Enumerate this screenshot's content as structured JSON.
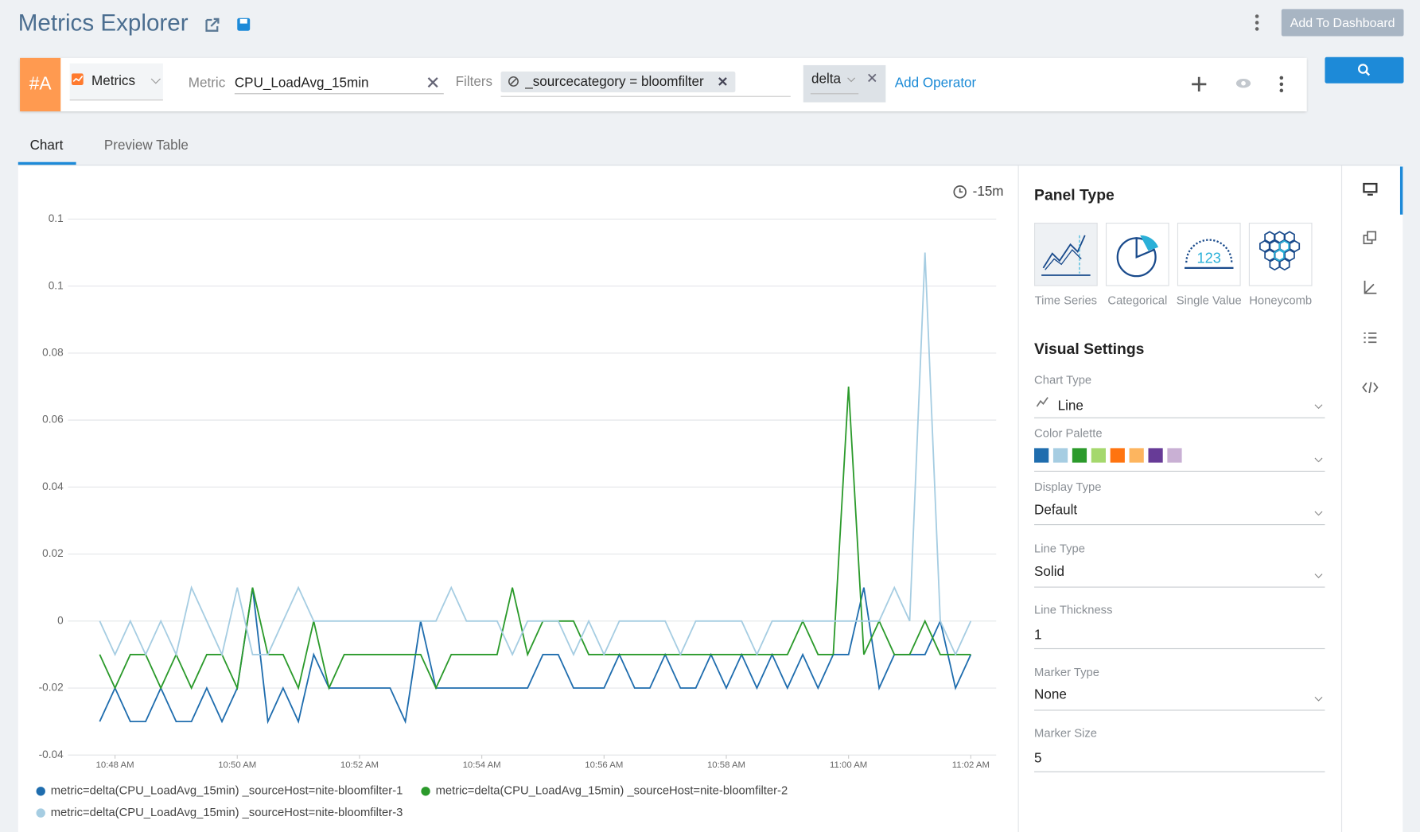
{
  "header": {
    "title": "Metrics Explorer",
    "button": "Add To Dashboard"
  },
  "query": {
    "label": "#A",
    "source": "Metrics",
    "metric_label": "Metric",
    "metric": "CPU_LoadAvg_15min",
    "filters_label": "Filters",
    "filter": "_sourcecategory = bloomfilter",
    "operator": "delta",
    "add_operator": "Add Operator"
  },
  "tabs": [
    "Chart",
    "Preview Table"
  ],
  "time_range": "-15m",
  "chart_data": {
    "type": "line",
    "x": [
      "10:47:45",
      "10:48:00",
      "10:48:15",
      "10:48:30",
      "10:48:45",
      "10:49:00",
      "10:49:15",
      "10:49:30",
      "10:49:45",
      "10:50:00",
      "10:50:15",
      "10:50:30",
      "10:50:45",
      "10:51:00",
      "10:51:15",
      "10:51:30",
      "10:51:45",
      "10:52:00",
      "10:52:15",
      "10:52:30",
      "10:52:45",
      "10:53:00",
      "10:53:15",
      "10:53:30",
      "10:53:45",
      "10:54:00",
      "10:54:15",
      "10:54:30",
      "10:54:45",
      "10:55:00",
      "10:55:15",
      "10:55:30",
      "10:55:45",
      "10:56:00",
      "10:56:15",
      "10:56:30",
      "10:56:45",
      "10:57:00",
      "10:57:15",
      "10:57:30",
      "10:57:45",
      "10:58:00",
      "10:58:15",
      "10:58:30",
      "10:58:45",
      "10:59:00",
      "10:59:15",
      "10:59:30",
      "10:59:45",
      "11:00:00",
      "11:00:15",
      "11:00:30",
      "11:00:45",
      "11:01:00",
      "11:01:15",
      "11:01:30",
      "11:01:45",
      "11:02:00"
    ],
    "series": [
      {
        "name": "metric=delta(CPU_LoadAvg_15min) _sourceHost=nite-bloomfilter-1",
        "color": "#1f6dae",
        "values": [
          -0.03,
          -0.02,
          -0.03,
          -0.03,
          -0.02,
          -0.03,
          -0.03,
          -0.02,
          -0.03,
          -0.02,
          0.01,
          -0.03,
          -0.02,
          -0.03,
          -0.01,
          -0.02,
          -0.02,
          -0.02,
          -0.02,
          -0.02,
          -0.03,
          0,
          -0.02,
          -0.02,
          -0.02,
          -0.02,
          -0.02,
          -0.02,
          -0.02,
          -0.01,
          -0.01,
          -0.02,
          -0.02,
          -0.02,
          -0.01,
          -0.02,
          -0.02,
          -0.01,
          -0.02,
          -0.02,
          -0.01,
          -0.02,
          -0.01,
          -0.02,
          -0.01,
          -0.02,
          -0.01,
          -0.02,
          -0.01,
          -0.01,
          0.01,
          -0.02,
          -0.01,
          -0.01,
          -0.01,
          0,
          -0.02,
          -0.01
        ]
      },
      {
        "name": "metric=delta(CPU_LoadAvg_15min) _sourceHost=nite-bloomfilter-2",
        "color": "#2b9a2b",
        "values": [
          -0.01,
          -0.02,
          -0.01,
          -0.01,
          -0.02,
          -0.01,
          -0.02,
          -0.01,
          -0.01,
          -0.02,
          0.01,
          -0.01,
          -0.01,
          -0.02,
          0,
          -0.02,
          -0.01,
          -0.01,
          -0.01,
          -0.01,
          -0.01,
          -0.01,
          -0.02,
          -0.01,
          -0.01,
          -0.01,
          -0.01,
          0.01,
          -0.01,
          0,
          0,
          0,
          -0.01,
          -0.01,
          -0.01,
          -0.01,
          -0.01,
          -0.01,
          -0.01,
          -0.01,
          -0.01,
          -0.01,
          -0.01,
          -0.01,
          -0.01,
          -0.01,
          0,
          -0.01,
          -0.01,
          0.07,
          -0.01,
          0,
          -0.01,
          -0.01,
          0,
          -0.01,
          -0.01,
          -0.01
        ]
      },
      {
        "name": "metric=delta(CPU_LoadAvg_15min) _sourceHost=nite-bloomfilter-3",
        "color": "#a6cde2",
        "values": [
          0,
          -0.01,
          0,
          -0.01,
          0,
          -0.01,
          0.01,
          0,
          -0.01,
          0.01,
          -0.01,
          -0.01,
          0,
          0.01,
          0,
          0,
          0,
          0,
          0,
          0,
          0,
          0,
          0,
          0.01,
          0,
          0,
          0,
          -0.01,
          0,
          0,
          0,
          -0.01,
          0,
          -0.01,
          0,
          0,
          0,
          0,
          -0.01,
          0,
          0,
          0,
          0,
          -0.01,
          0,
          0,
          0,
          0,
          0,
          0,
          0,
          0,
          0.01,
          0,
          0.11,
          0,
          -0.01,
          0
        ]
      }
    ],
    "ylim": [
      -0.04,
      0.12
    ],
    "yticks": [
      -0.04,
      -0.02,
      0,
      0.02,
      0.04,
      0.06,
      0.08,
      0.1,
      {
        "value": 0.12,
        "label": "0.1"
      }
    ],
    "xticks": [
      {
        "value": "10:48:00",
        "label": "10:48 AM"
      },
      {
        "value": "10:50:00",
        "label": "10:50 AM"
      },
      {
        "value": "10:52:00",
        "label": "10:52 AM"
      },
      {
        "value": "10:54:00",
        "label": "10:54 AM"
      },
      {
        "value": "10:56:00",
        "label": "10:56 AM"
      },
      {
        "value": "10:58:00",
        "label": "10:58 AM"
      },
      {
        "value": "11:00:00",
        "label": "11:00 AM"
      },
      {
        "value": "11:02:00",
        "label": "11:02 AM"
      }
    ],
    "grid": true
  },
  "panel": {
    "title": "Panel Type",
    "types": [
      "Time Series",
      "Categorical",
      "Single Value",
      "Honeycomb"
    ],
    "visual_title": "Visual Settings",
    "settings": [
      {
        "label": "Chart Type",
        "value": "Line"
      },
      {
        "label": "Color Palette",
        "colors": [
          "#1f6dae",
          "#a6cde2",
          "#2b9a2b",
          "#a5d86d",
          "#ff7410",
          "#fdb55f",
          "#673b97",
          "#c9b0d4"
        ]
      },
      {
        "label": "Display Type",
        "value": "Default"
      },
      {
        "label": "Line Type",
        "value": "Solid"
      },
      {
        "label": "Line Thickness",
        "value": 1
      },
      {
        "label": "Marker Type",
        "value": "None"
      },
      {
        "label": "Marker Size",
        "value": 5
      }
    ]
  }
}
